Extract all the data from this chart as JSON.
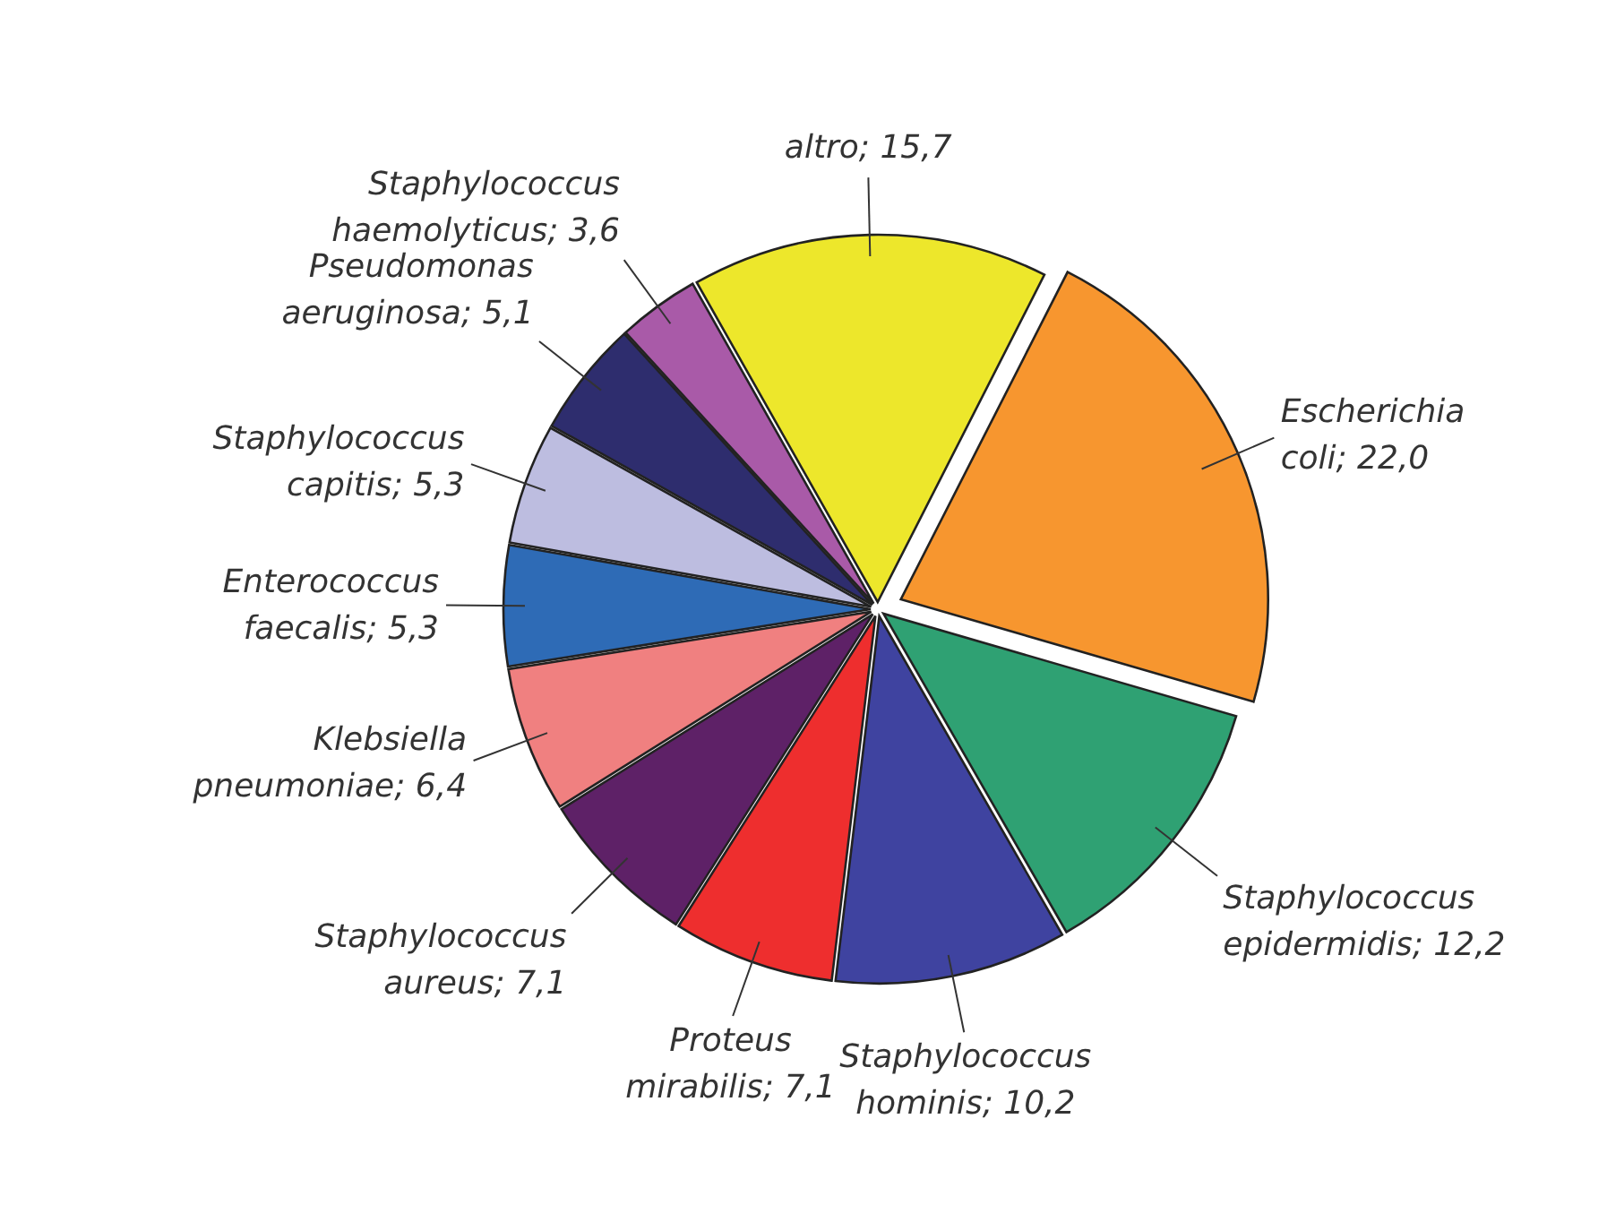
{
  "chart_data": {
    "type": "pie",
    "categories": [
      "Escherichia coli",
      "Staphylococcus epidermidis",
      "Staphylococcus hominis",
      "Proteus mirabilis",
      "Staphylococcus aureus",
      "Klebsiella pneumoniae",
      "Enterococcus faecalis",
      "Staphylococcus capitis",
      "Pseudomonas aeruginosa",
      "Staphylococcus haemolyticus",
      "altro"
    ],
    "values": [
      22.0,
      12.2,
      10.2,
      7.1,
      7.1,
      6.4,
      5.3,
      5.3,
      5.1,
      3.6,
      15.7
    ],
    "value_labels": [
      "; 22,0",
      "; 12,2",
      "; 10,2",
      "; 7,1",
      "; 7,1",
      "; 6,4",
      "; 5,3",
      "; 5,3",
      "; 5,1",
      "; 3,6",
      "; 15,7"
    ],
    "colors": [
      "#f7962f",
      "#2fa173",
      "#3f43a0",
      "#ee2e2e",
      "#5e2167",
      "#f08080",
      "#2e6bb6",
      "#bdbde0",
      "#2e2d6e",
      "#a95aa8",
      "#ede72b"
    ]
  }
}
